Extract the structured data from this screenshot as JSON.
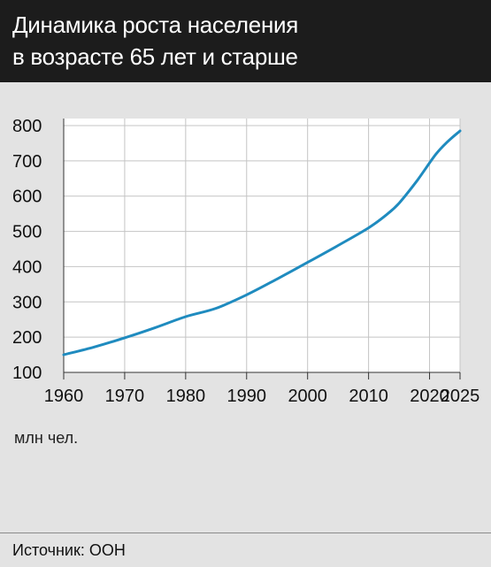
{
  "header": {
    "title_line1": "Динамика роста населения",
    "title_line2": "в возрасте 65 лет и старше"
  },
  "unit_label": "млн чел.",
  "source": "Источник: ООН",
  "colors": {
    "header_bg": "#1c1c1c",
    "background": "#e3e3e3",
    "plot_bg": "#ffffff",
    "line": "#1f8bbf"
  },
  "chart_data": {
    "type": "line",
    "title": "Динамика роста населения в возрасте 65 лет и старше",
    "xlabel": "",
    "ylabel": "млн чел.",
    "xlim": [
      1960,
      2025
    ],
    "ylim": [
      100,
      800
    ],
    "x_ticks": [
      1960,
      1970,
      1980,
      1990,
      2000,
      2010,
      2020,
      2025
    ],
    "y_ticks": [
      100,
      200,
      300,
      400,
      500,
      600,
      700,
      800
    ],
    "grid": true,
    "x": [
      1960,
      1965,
      1970,
      1975,
      1980,
      1985,
      1990,
      1995,
      2000,
      2005,
      2010,
      2013,
      2015,
      2018,
      2021,
      2023,
      2025
    ],
    "series": [
      {
        "name": "",
        "values": [
          150,
          172,
          198,
          227,
          258,
          282,
          320,
          365,
          412,
          460,
          510,
          548,
          580,
          645,
          718,
          755,
          785
        ]
      }
    ],
    "source": "Источник: ООН"
  }
}
